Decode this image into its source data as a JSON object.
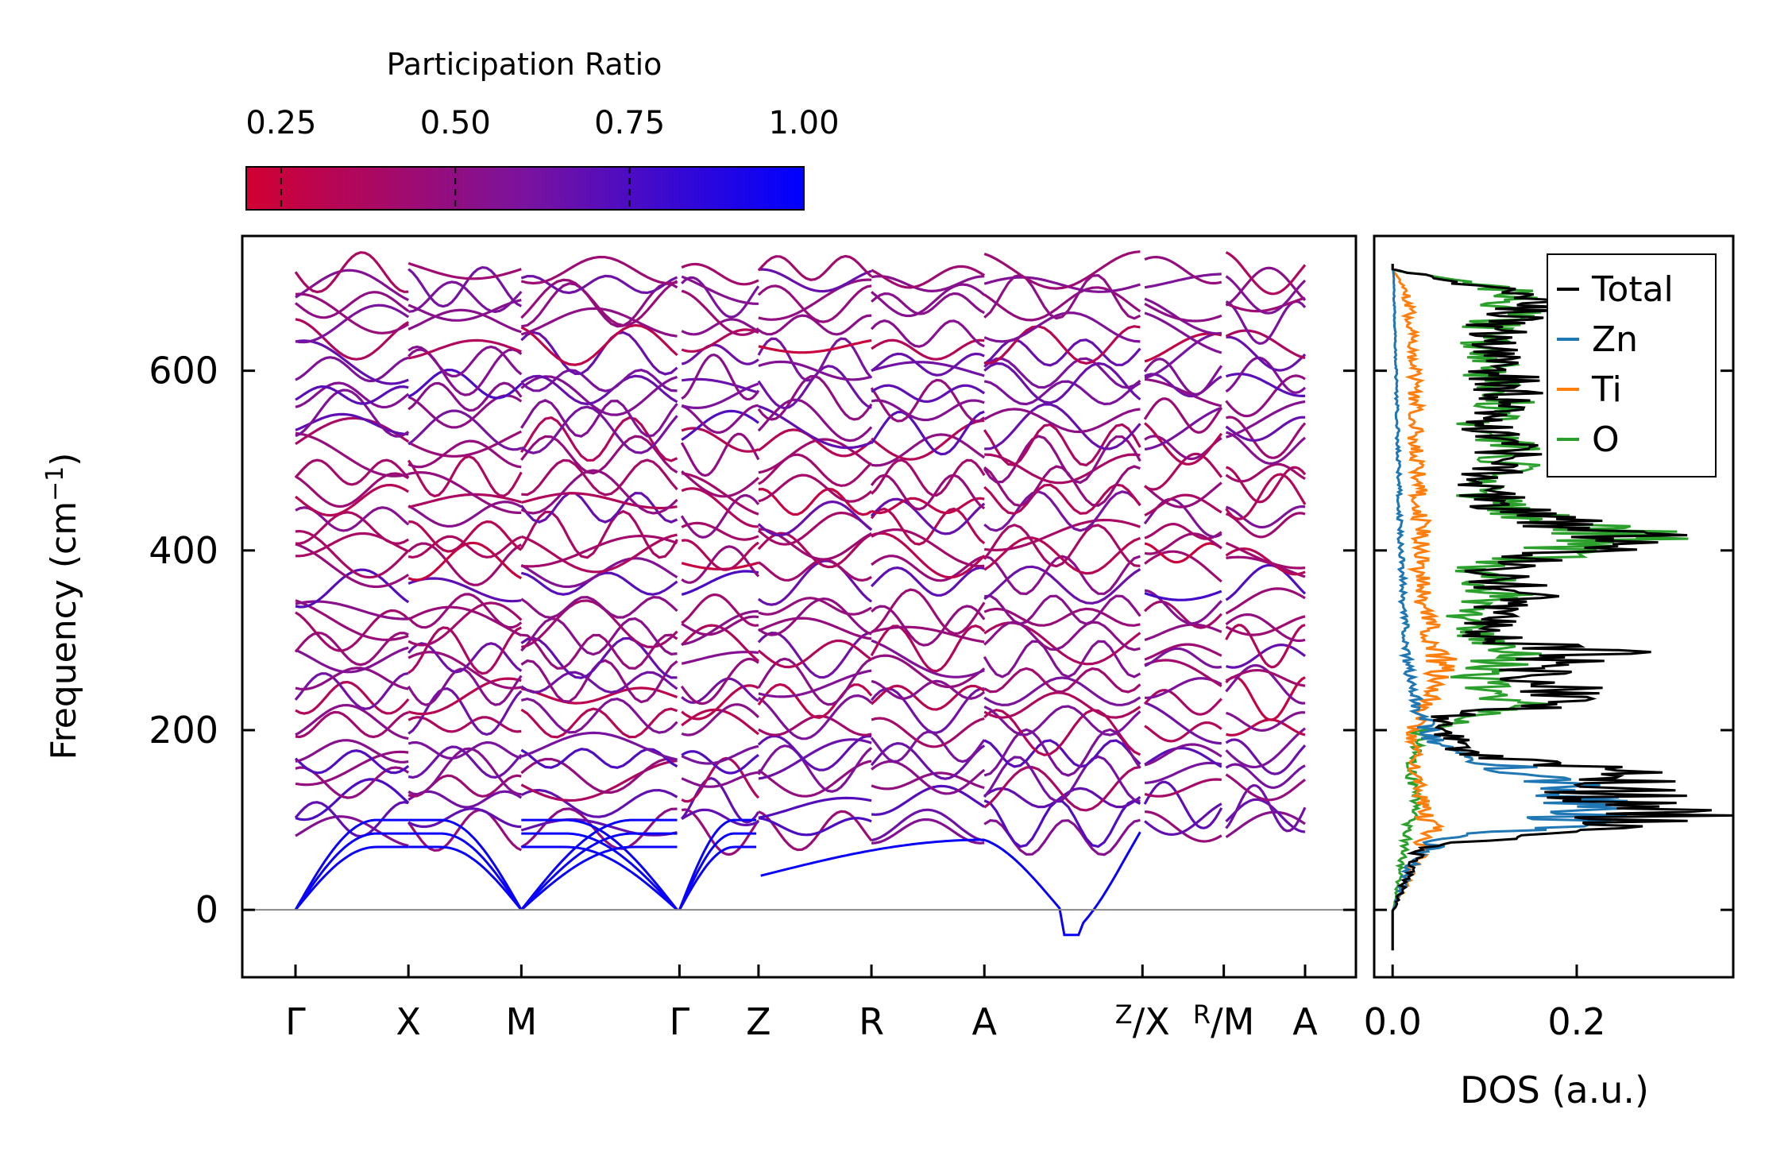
{
  "chart_data": [
    {
      "type": "line",
      "subtype": "phonon-band-structure",
      "title": "",
      "ylabel": "Frequency (cm",
      "ylabel_sup": "−1",
      "ylabel_suffix": ")",
      "ylim": [
        -75,
        750
      ],
      "yticks": [
        0,
        200,
        400,
        600
      ],
      "kpath_labels": [
        "Γ",
        "X",
        "M",
        "Γ",
        "Z",
        "R",
        "A",
        "Z|X",
        "R|M",
        "A"
      ],
      "kpath_display": [
        {
          "text": "Γ"
        },
        {
          "text": "X"
        },
        {
          "text": "M"
        },
        {
          "text": "Γ"
        },
        {
          "text": "Z"
        },
        {
          "text": "R"
        },
        {
          "text": "A"
        },
        {
          "sup": "Z",
          "main": "/X"
        },
        {
          "sup": "R",
          "main": "/M"
        },
        {
          "text": "A"
        }
      ],
      "kpath_positions": [
        0,
        1,
        2,
        3.4,
        4.1,
        5.1,
        6.1,
        7.5,
        8.22,
        8.94
      ],
      "segment_breaks": [
        3.4,
        4.1,
        7.5,
        8.22
      ],
      "zero_line": 0,
      "acoustic_endpoints_cm1": [
        70,
        85,
        100
      ],
      "optical_band_count": 40,
      "optical_band_range_cm1": [
        85,
        712
      ],
      "imaginary_mode": {
        "between": [
          "A",
          "Z|X"
        ],
        "min_frequency_cm1": -28
      },
      "colorbar": {
        "label": "Participation Ratio",
        "min": 0.2,
        "max": 1.0,
        "ticks": [
          0.25,
          0.5,
          0.75,
          1.0
        ],
        "tick_labels": [
          "0.25",
          "0.50",
          "0.75",
          "1.00"
        ],
        "color_low": "#d20032",
        "color_mid": "#7a139e",
        "color_high": "#0000ff"
      }
    },
    {
      "type": "line",
      "subtype": "density-of-states",
      "xlabel": "DOS (a.u.)",
      "xlim": [
        -0.02,
        0.37
      ],
      "xticks": [
        0.0,
        0.2
      ],
      "xtick_labels": [
        "0.0",
        "0.2"
      ],
      "ylim": [
        -75,
        750
      ],
      "legend_position": "top-right",
      "series": [
        {
          "name": "Total",
          "color": "#000000",
          "peaks": [
            [
              0,
              0.002
            ],
            [
              60,
              0.03
            ],
            [
              70,
              0.05
            ],
            [
              100,
              0.35
            ],
            [
              130,
              0.29
            ],
            [
              155,
              0.27
            ],
            [
              175,
              0.09
            ],
            [
              195,
              0.08
            ],
            [
              215,
              0.06
            ],
            [
              230,
              0.24
            ],
            [
              255,
              0.22
            ],
            [
              270,
              0.16
            ],
            [
              285,
              0.29
            ],
            [
              300,
              0.14
            ],
            [
              330,
              0.12
            ],
            [
              350,
              0.17
            ],
            [
              380,
              0.13
            ],
            [
              415,
              0.32
            ],
            [
              440,
              0.17
            ],
            [
              460,
              0.13
            ],
            [
              480,
              0.12
            ],
            [
              500,
              0.17
            ],
            [
              520,
              0.14
            ],
            [
              545,
              0.12
            ],
            [
              570,
              0.16
            ],
            [
              630,
              0.13
            ],
            [
              655,
              0.14
            ],
            [
              670,
              0.18
            ],
            [
              690,
              0.14
            ],
            [
              712,
              0.002
            ]
          ]
        },
        {
          "name": "Zn",
          "color": "#1f77b4",
          "peaks": [
            [
              0,
              0.001
            ],
            [
              60,
              0.03
            ],
            [
              80,
              0.07
            ],
            [
              100,
              0.26
            ],
            [
              130,
              0.25
            ],
            [
              155,
              0.18
            ],
            [
              175,
              0.07
            ],
            [
              195,
              0.05
            ],
            [
              215,
              0.04
            ],
            [
              240,
              0.03
            ],
            [
              270,
              0.02
            ],
            [
              330,
              0.015
            ],
            [
              420,
              0.01
            ],
            [
              712,
              0.001
            ]
          ]
        },
        {
          "name": "Ti",
          "color": "#ff7f0e",
          "peaks": [
            [
              0,
              0.001
            ],
            [
              90,
              0.05
            ],
            [
              120,
              0.04
            ],
            [
              160,
              0.03
            ],
            [
              200,
              0.025
            ],
            [
              230,
              0.05
            ],
            [
              255,
              0.06
            ],
            [
              280,
              0.065
            ],
            [
              300,
              0.05
            ],
            [
              330,
              0.045
            ],
            [
              380,
              0.035
            ],
            [
              410,
              0.04
            ],
            [
              460,
              0.035
            ],
            [
              520,
              0.03
            ],
            [
              580,
              0.03
            ],
            [
              640,
              0.025
            ],
            [
              680,
              0.02
            ],
            [
              712,
              0.001
            ]
          ]
        },
        {
          "name": "O",
          "color": "#2ca02c",
          "peaks": [
            [
              0,
              0.001
            ],
            [
              90,
              0.02
            ],
            [
              120,
              0.035
            ],
            [
              150,
              0.025
            ],
            [
              180,
              0.03
            ],
            [
              200,
              0.04
            ],
            [
              230,
              0.16
            ],
            [
              260,
              0.11
            ],
            [
              285,
              0.16
            ],
            [
              300,
              0.12
            ],
            [
              330,
              0.09
            ],
            [
              350,
              0.14
            ],
            [
              380,
              0.12
            ],
            [
              415,
              0.32
            ],
            [
              440,
              0.17
            ],
            [
              460,
              0.12
            ],
            [
              480,
              0.11
            ],
            [
              500,
              0.16
            ],
            [
              520,
              0.14
            ],
            [
              545,
              0.12
            ],
            [
              570,
              0.15
            ],
            [
              630,
              0.12
            ],
            [
              655,
              0.13
            ],
            [
              670,
              0.17
            ],
            [
              690,
              0.14
            ],
            [
              712,
              0.001
            ]
          ]
        }
      ]
    }
  ]
}
